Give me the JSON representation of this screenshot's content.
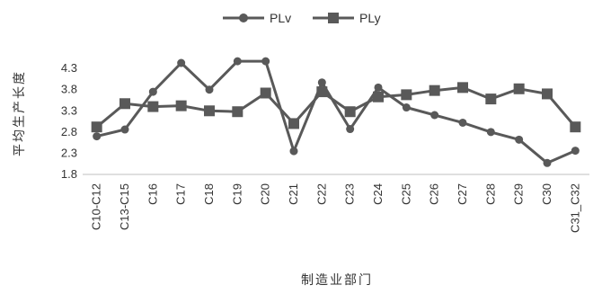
{
  "chart_data": {
    "type": "line",
    "title": "",
    "xlabel": "制造业部门",
    "ylabel": "平均生产长度",
    "categories": [
      "C10-C12",
      "C13-C15",
      "C16",
      "C17",
      "C18",
      "C19",
      "C20",
      "C21",
      "C22",
      "C23",
      "C24",
      "C25",
      "C26",
      "C27",
      "C28",
      "C29",
      "C30",
      "C31_C32"
    ],
    "yticks": [
      "1.8",
      "2.3",
      "2.8",
      "3.3",
      "3.8",
      "4.3"
    ],
    "ylim": [
      1.8,
      4.6
    ],
    "legend_position": "top-center",
    "series": [
      {
        "name": "PLv",
        "marker": "circle",
        "color": "#595959",
        "values": [
          2.7,
          2.86,
          3.75,
          4.43,
          3.8,
          4.47,
          4.47,
          2.35,
          3.97,
          2.87,
          3.85,
          3.38,
          3.2,
          3.02,
          2.8,
          2.62,
          2.07,
          2.36
        ]
      },
      {
        "name": "PLy",
        "marker": "square",
        "color": "#595959",
        "values": [
          2.92,
          3.47,
          3.4,
          3.42,
          3.3,
          3.28,
          3.72,
          3.0,
          3.75,
          3.28,
          3.63,
          3.68,
          3.78,
          3.85,
          3.58,
          3.82,
          3.7,
          2.92
        ]
      }
    ]
  }
}
